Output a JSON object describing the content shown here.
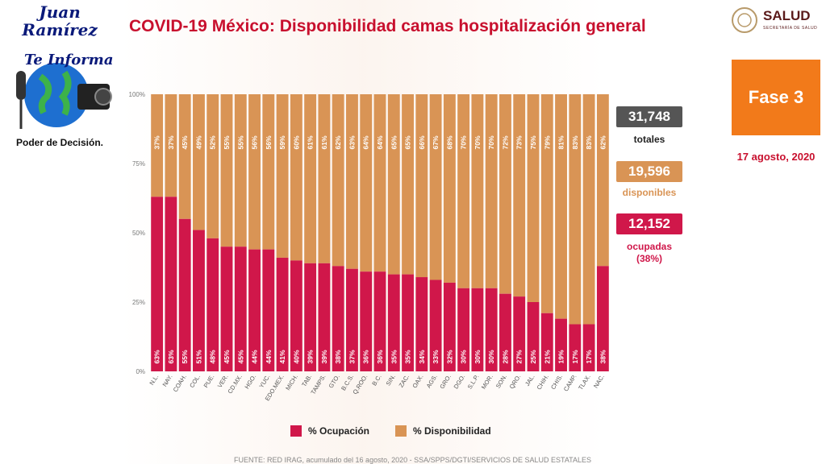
{
  "logo": {
    "name": "Juan Ramírez",
    "sub": "Te Informa",
    "tagline": "Poder de Decisión."
  },
  "title": "COVID-19 México: Disponibilidad camas hospitalización general",
  "brand": {
    "name": "SALUD",
    "sub": "SECRETARÍA DE SALUD"
  },
  "phase": "Fase 3",
  "date": "17 agosto, 2020",
  "stats": {
    "total_value": "31,748",
    "total_label": "totales",
    "available_value": "19,596",
    "available_label": "disponibles",
    "occupied_value": "12,152",
    "occupied_label": "ocupadas",
    "occupied_pct": "(38%)"
  },
  "legend": {
    "occupied": "% Ocupación",
    "available": "% Disponibilidad"
  },
  "source": "FUENTE: RED IRAG, acumulado del 16 agosto, 2020  -  SSA/SPPS/DGTI/SERVICIOS DE SALUD ESTATALES",
  "colors": {
    "occupied": "#d0174a",
    "available": "#d99455",
    "total": "#555555",
    "title": "#c8102e",
    "phase": "#f27a1a"
  },
  "chart_data": {
    "type": "bar",
    "stacked": true,
    "categories": [
      "N.L.",
      "NAY.",
      "COAH.",
      "COL.",
      "PUE.",
      "VER.",
      "CD.MX.",
      "HGO.",
      "YUC.",
      "EDO.MEX.",
      "MICH.",
      "TAB.",
      "TAMPS.",
      "GTO.",
      "B.C.S.",
      "Q.ROO.",
      "B.C.",
      "SIN.",
      "ZAC.",
      "OAX.",
      "AGS.",
      "GRO.",
      "DGO.",
      "S.L.P.",
      "MOR.",
      "SON.",
      "QRO.",
      "JAL.",
      "CHIH.",
      "CHIS.",
      "CAMP.",
      "TLAX.",
      "NAC."
    ],
    "series": [
      {
        "name": "% Ocupación",
        "values": [
          63,
          63,
          55,
          51,
          48,
          45,
          45,
          44,
          44,
          41,
          40,
          39,
          39,
          38,
          37,
          36,
          36,
          35,
          35,
          34,
          33,
          32,
          30,
          30,
          30,
          28,
          27,
          25,
          21,
          19,
          17,
          17,
          38
        ]
      },
      {
        "name": "% Disponibilidad",
        "values": [
          37,
          37,
          45,
          49,
          52,
          55,
          55,
          56,
          56,
          59,
          60,
          61,
          61,
          62,
          63,
          64,
          64,
          65,
          65,
          66,
          67,
          68,
          70,
          70,
          70,
          72,
          73,
          75,
          79,
          81,
          83,
          83,
          62
        ]
      }
    ],
    "yticks": [
      "0%",
      "25%",
      "50%",
      "75%",
      "100%"
    ],
    "ylim": [
      0,
      100
    ]
  }
}
